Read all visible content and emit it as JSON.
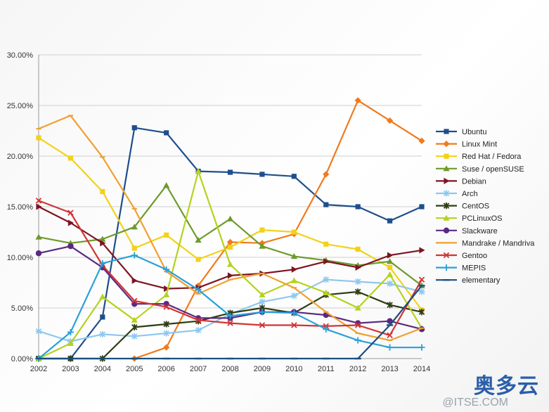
{
  "chart_data": {
    "type": "line",
    "title": "",
    "xlabel": "",
    "ylabel": "",
    "x": [
      "2002",
      "2003",
      "2004",
      "2005",
      "2006",
      "2007",
      "2008",
      "2009",
      "2010",
      "2011",
      "2012",
      "2013",
      "2014"
    ],
    "ylim": [
      0,
      30
    ],
    "y_tick_labels": [
      "0.00%",
      "5.00%",
      "10.00%",
      "15.00%",
      "20.00%",
      "25.00%",
      "30.00%"
    ],
    "y_ticks": [
      0,
      5,
      10,
      15,
      20,
      25,
      30
    ],
    "grid": "horizontal",
    "legend_position": "right",
    "series": [
      {
        "name": "Ubuntu",
        "color": "#1f4e8c",
        "marker": "square",
        "values": [
          0,
          0,
          4.1,
          22.8,
          22.3,
          18.5,
          18.4,
          18.2,
          18.0,
          15.2,
          15.0,
          13.6,
          15.0
        ]
      },
      {
        "name": "Linux Mint",
        "color": "#f07a1e",
        "marker": "diamond",
        "values": [
          null,
          null,
          null,
          0,
          1.1,
          7.2,
          11.5,
          11.4,
          12.3,
          18.2,
          25.5,
          23.5,
          21.5
        ]
      },
      {
        "name": "Red Hat / Fedora",
        "color": "#f2d21a",
        "marker": "square",
        "values": [
          21.8,
          19.8,
          16.5,
          10.9,
          12.2,
          9.8,
          11.0,
          12.7,
          12.5,
          11.3,
          10.8,
          9.0,
          4.8
        ]
      },
      {
        "name": "Suse / openSUSE",
        "color": "#6e9a2b",
        "marker": "triangle",
        "values": [
          12.0,
          11.4,
          11.8,
          13.0,
          17.1,
          11.7,
          13.8,
          11.1,
          10.1,
          9.7,
          9.2,
          9.6,
          7.2
        ]
      },
      {
        "name": "Debian",
        "color": "#7e1422",
        "marker": "triangle-right",
        "values": [
          15.0,
          13.4,
          11.4,
          7.7,
          6.9,
          7.0,
          8.2,
          8.4,
          8.8,
          9.6,
          9.0,
          10.2,
          10.7
        ]
      },
      {
        "name": "Arch",
        "color": "#8ec8ee",
        "marker": "star",
        "values": [
          2.7,
          1.7,
          2.4,
          2.2,
          2.5,
          2.8,
          4.4,
          5.6,
          6.2,
          7.8,
          7.6,
          7.4,
          6.6
        ]
      },
      {
        "name": "CentOS",
        "color": "#2e3d12",
        "marker": "cross",
        "values": [
          0,
          0,
          0,
          3.1,
          3.4,
          3.7,
          4.5,
          5.0,
          4.5,
          6.3,
          6.6,
          5.3,
          4.6
        ]
      },
      {
        "name": "PCLinuxOS",
        "color": "#b5d21e",
        "marker": "triangle",
        "values": [
          0,
          1.5,
          6.1,
          3.8,
          6.3,
          18.5,
          9.3,
          6.3,
          7.7,
          6.5,
          5.0,
          8.3,
          3.0
        ]
      },
      {
        "name": "Slackware",
        "color": "#5a2a82",
        "marker": "circle",
        "values": [
          10.4,
          11.1,
          9.0,
          5.4,
          5.4,
          4.0,
          4.0,
          4.6,
          4.6,
          4.3,
          3.5,
          3.7,
          2.9
        ]
      },
      {
        "name": "Mandrake / Mandriva",
        "color": "#f0a030",
        "marker": "line",
        "values": [
          22.7,
          24.0,
          19.9,
          14.8,
          8.6,
          6.4,
          7.8,
          8.4,
          7.0,
          4.6,
          2.5,
          1.8,
          3.0
        ]
      },
      {
        "name": "Gentoo",
        "color": "#d23434",
        "marker": "x",
        "values": [
          15.6,
          14.4,
          9.2,
          5.7,
          5.1,
          3.8,
          3.5,
          3.3,
          3.3,
          3.2,
          3.3,
          2.3,
          7.8
        ]
      },
      {
        "name": "MEPIS",
        "color": "#2aa0d8",
        "marker": "plus",
        "values": [
          0,
          2.6,
          9.4,
          10.2,
          8.8,
          6.8,
          4.2,
          4.6,
          4.5,
          2.9,
          1.8,
          1.1,
          1.1
        ]
      },
      {
        "name": "elementary",
        "color": "#1a4f80",
        "marker": "dash",
        "values": [
          0,
          0,
          0,
          0,
          0,
          0,
          0,
          0,
          0,
          0,
          0,
          3.3,
          7.2
        ]
      }
    ]
  },
  "watermark": {
    "logo_text": "奥多云",
    "url_text": "@ITSE.COM"
  }
}
